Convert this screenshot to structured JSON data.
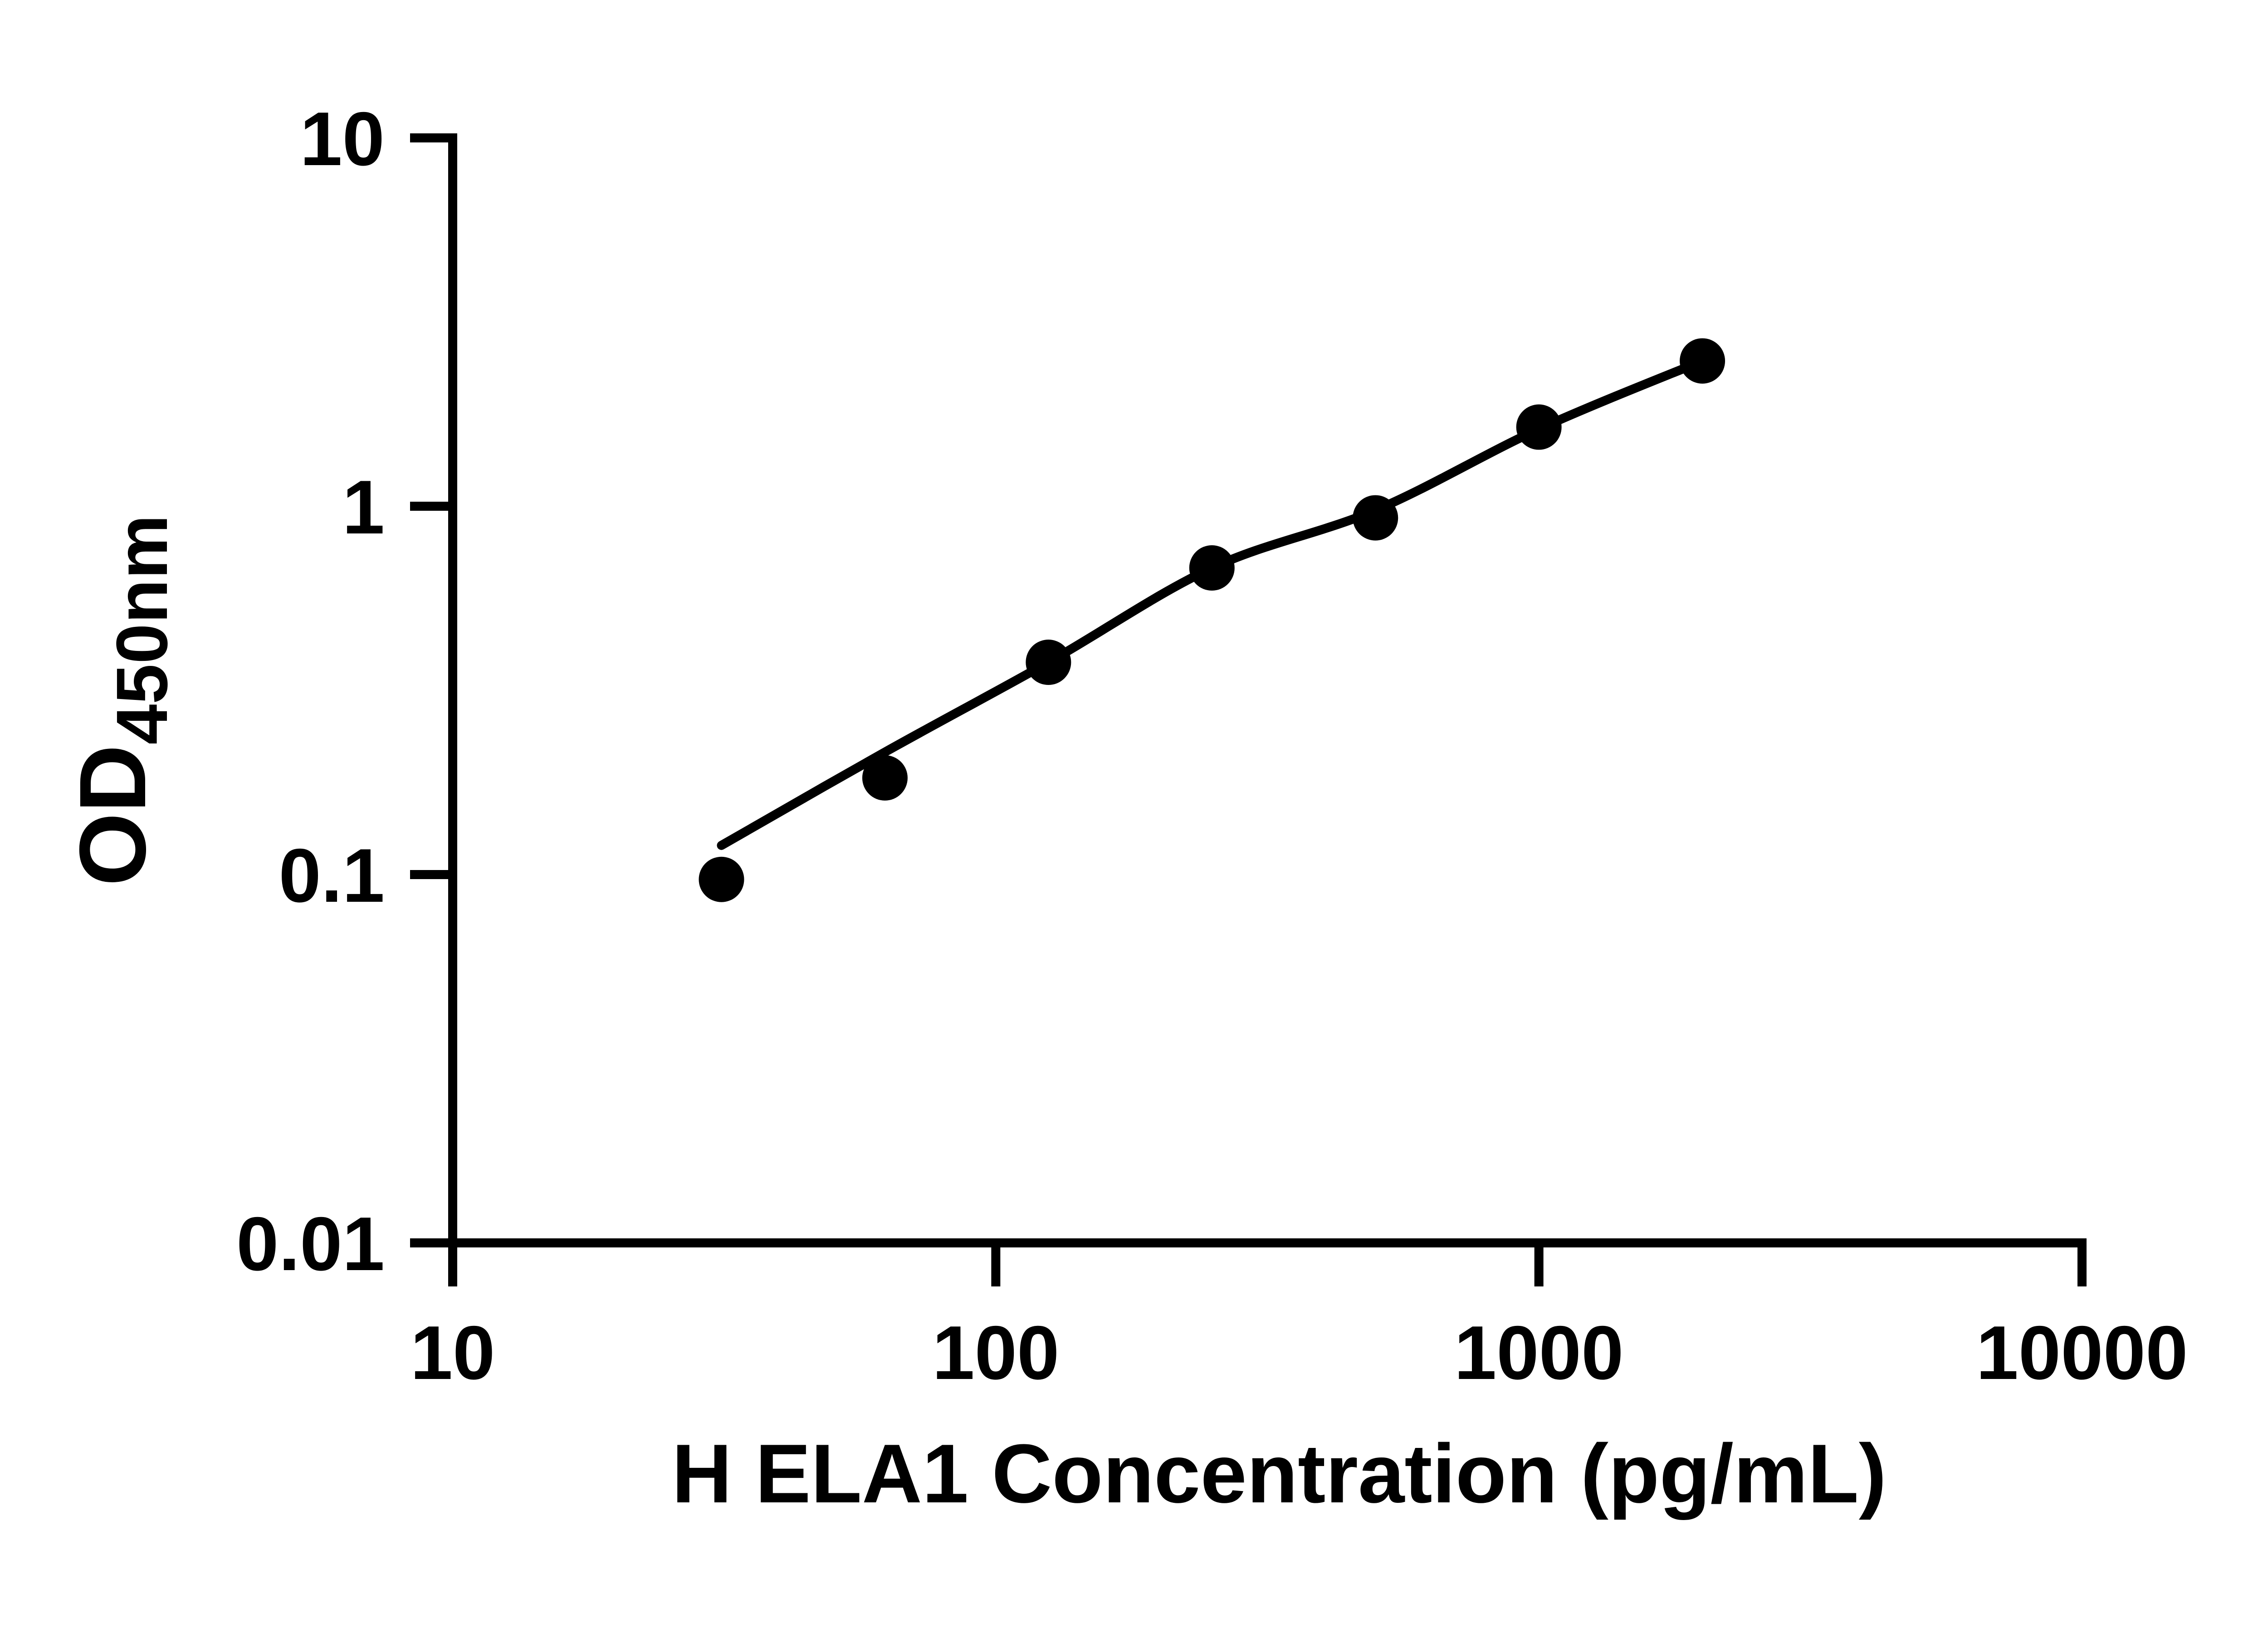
{
  "chart_data": {
    "type": "scatter",
    "title": "",
    "xlabel": "H ELA1 Concentration (pg/mL)",
    "ylabel_main": "OD",
    "ylabel_sub": "450nm",
    "x_scale": "log",
    "y_scale": "log",
    "xlim": [
      10,
      10000
    ],
    "ylim": [
      0.01,
      10
    ],
    "x_tick_values": [
      10,
      100,
      1000,
      10000
    ],
    "x_tick_labels": [
      "10",
      "100",
      "1000",
      "10000"
    ],
    "y_tick_values": [
      10,
      1,
      0.1,
      0.01
    ],
    "y_tick_labels": [
      "10",
      "1",
      "0.1",
      "0.01"
    ],
    "grid": "off",
    "legend": "none",
    "points": [
      {
        "x": 31.25,
        "y": 0.097
      },
      {
        "x": 62.5,
        "y": 0.183
      },
      {
        "x": 125,
        "y": 0.377
      },
      {
        "x": 250,
        "y": 0.68
      },
      {
        "x": 500,
        "y": 0.93
      },
      {
        "x": 1000,
        "y": 1.64
      },
      {
        "x": 2000,
        "y": 2.48
      }
    ],
    "fit_curve": [
      {
        "x": 31.25,
        "y": 0.12
      },
      {
        "x": 62.5,
        "y": 0.215
      },
      {
        "x": 125,
        "y": 0.377
      },
      {
        "x": 250,
        "y": 0.68
      },
      {
        "x": 500,
        "y": 0.975
      },
      {
        "x": 1000,
        "y": 1.62
      },
      {
        "x": 2000,
        "y": 2.48
      }
    ],
    "colors": {
      "background": "#ffffff",
      "axis": "#000000",
      "line": "#000000",
      "marker": "#000000",
      "text": "#000000"
    }
  }
}
